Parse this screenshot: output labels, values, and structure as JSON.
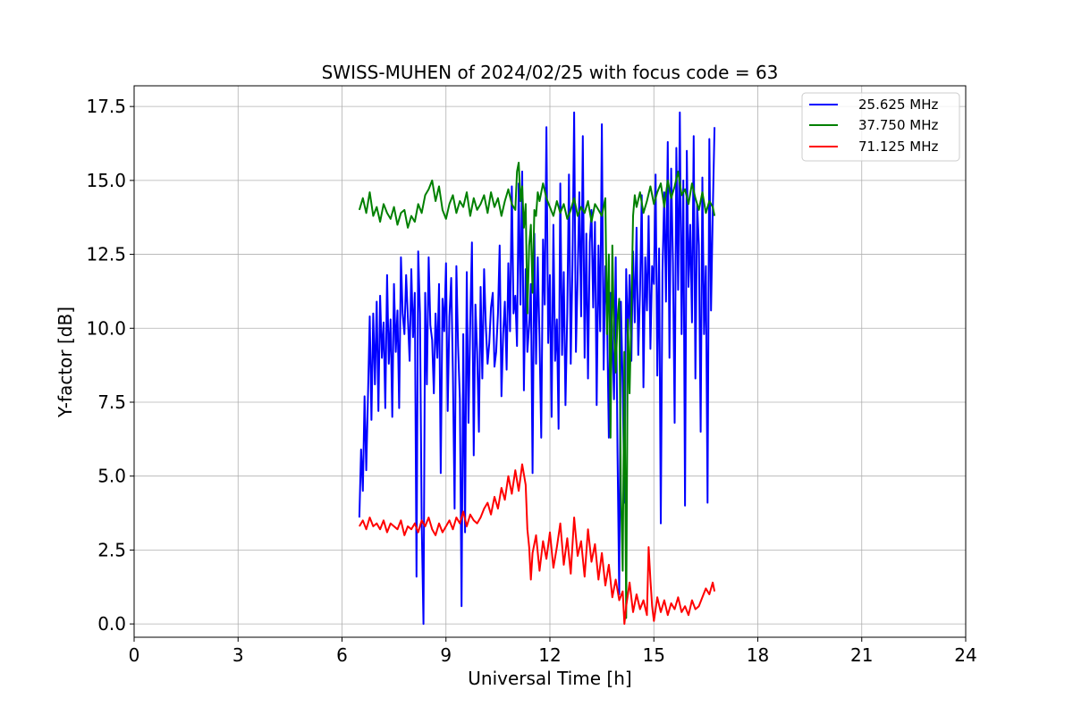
{
  "chart_data": {
    "type": "line",
    "title": "SWISS-MUHEN of 2024/02/25 with focus code = 63",
    "xlabel": "Universal Time [h]",
    "ylabel": "Y-factor [dB]",
    "xlim": [
      0,
      24
    ],
    "ylim": [
      -0.45,
      18.2
    ],
    "x_ticks": [
      0,
      3,
      6,
      9,
      12,
      15,
      18,
      21,
      24
    ],
    "x_tick_labels": [
      "0",
      "3",
      "6",
      "9",
      "12",
      "15",
      "18",
      "21",
      "24"
    ],
    "y_ticks": [
      0.0,
      2.5,
      5.0,
      7.5,
      10.0,
      12.5,
      15.0,
      17.5
    ],
    "y_tick_labels": [
      "0.0",
      "2.5",
      "5.0",
      "7.5",
      "10.0",
      "12.5",
      "15.0",
      "17.5"
    ],
    "grid": true,
    "legend_position": "top-right",
    "series": [
      {
        "name": "25.625 MHz",
        "color": "#0000ff",
        "x": [
          6.5,
          6.55,
          6.6,
          6.65,
          6.7,
          6.75,
          6.8,
          6.85,
          6.9,
          6.95,
          7.0,
          7.05,
          7.1,
          7.15,
          7.2,
          7.25,
          7.3,
          7.35,
          7.4,
          7.45,
          7.5,
          7.55,
          7.6,
          7.65,
          7.7,
          7.75,
          7.8,
          7.85,
          7.9,
          7.95,
          8.0,
          8.05,
          8.1,
          8.15,
          8.2,
          8.25,
          8.3,
          8.35,
          8.4,
          8.45,
          8.5,
          8.55,
          8.6,
          8.65,
          8.7,
          8.75,
          8.8,
          8.85,
          8.9,
          8.95,
          9.0,
          9.05,
          9.1,
          9.15,
          9.2,
          9.25,
          9.3,
          9.35,
          9.4,
          9.45,
          9.5,
          9.55,
          9.6,
          9.65,
          9.7,
          9.75,
          9.8,
          9.85,
          9.9,
          9.95,
          10.0,
          10.05,
          10.1,
          10.15,
          10.2,
          10.25,
          10.3,
          10.35,
          10.4,
          10.45,
          10.5,
          10.55,
          10.6,
          10.65,
          10.7,
          10.75,
          10.8,
          10.85,
          10.9,
          10.95,
          11.0,
          11.05,
          11.1,
          11.15,
          11.2,
          11.25,
          11.3,
          11.35,
          11.4,
          11.45,
          11.5,
          11.55,
          11.6,
          11.65,
          11.7,
          11.75,
          11.8,
          11.85,
          11.9,
          11.95,
          12.0,
          12.05,
          12.1,
          12.15,
          12.2,
          12.25,
          12.3,
          12.35,
          12.4,
          12.45,
          12.5,
          12.55,
          12.6,
          12.65,
          12.7,
          12.75,
          12.8,
          12.85,
          12.9,
          12.95,
          13.0,
          13.05,
          13.1,
          13.15,
          13.2,
          13.25,
          13.3,
          13.35,
          13.4,
          13.45,
          13.5,
          13.55,
          13.6,
          13.65,
          13.7,
          13.75,
          13.8,
          13.85,
          13.9,
          13.95,
          14.0,
          14.05,
          14.1,
          14.15,
          14.2,
          14.25,
          14.3,
          14.35,
          14.4,
          14.45,
          14.5,
          14.55,
          14.6,
          14.65,
          14.7,
          14.75,
          14.8,
          14.85,
          14.9,
          14.95,
          15.0,
          15.05,
          15.1,
          15.15,
          15.2,
          15.25,
          15.3,
          15.35,
          15.4,
          15.45,
          15.5,
          15.55,
          15.6,
          15.65,
          15.7,
          15.75,
          15.8,
          15.85,
          15.9,
          15.95,
          16.0,
          16.05,
          16.1,
          16.15,
          16.2,
          16.25,
          16.3,
          16.35,
          16.4,
          16.45,
          16.5,
          16.55,
          16.6,
          16.65,
          16.7,
          16.75
        ],
        "y": [
          3.6,
          5.9,
          4.5,
          7.7,
          5.2,
          7.8,
          10.4,
          6.9,
          10.5,
          8.1,
          10.9,
          7.2,
          11.1,
          9.0,
          10.2,
          7.3,
          11.8,
          8.8,
          10.3,
          7.0,
          11.5,
          9.2,
          10.6,
          7.3,
          12.4,
          10.5,
          9.8,
          11.8,
          10.4,
          8.9,
          12.0,
          9.7,
          11.2,
          1.6,
          12.6,
          10.5,
          3.4,
          0.0,
          11.2,
          8.1,
          12.4,
          10.1,
          9.6,
          7.8,
          10.5,
          9.0,
          11.5,
          5.1,
          11.0,
          9.9,
          12.2,
          7.2,
          10.4,
          11.7,
          8.5,
          3.9,
          12.1,
          9.4,
          7.6,
          0.6,
          9.8,
          3.1,
          11.9,
          6.8,
          10.2,
          12.9,
          5.7,
          10.8,
          9.2,
          6.5,
          11.4,
          8.3,
          12.0,
          10.1,
          8.8,
          9.5,
          10.7,
          11.2,
          8.7,
          9.2,
          10.5,
          12.8,
          7.7,
          9.8,
          10.9,
          8.6,
          12.2,
          9.9,
          14.8,
          10.5,
          11.1,
          9.4,
          14.9,
          10.8,
          15.3,
          7.9,
          12.0,
          9.2,
          10.1,
          11.5,
          5.1,
          13.2,
          8.8,
          12.4,
          9.6,
          6.3,
          13.0,
          10.8,
          16.8,
          9.5,
          11.8,
          7.0,
          13.5,
          8.9,
          10.3,
          6.6,
          14.9,
          9.1,
          11.9,
          7.4,
          10.5,
          15.2,
          8.8,
          12.1,
          17.3,
          9.2,
          11.7,
          14.6,
          10.4,
          16.5,
          9.0,
          13.2,
          8.3,
          12.9,
          14.0,
          10.7,
          13.6,
          7.4,
          12.8,
          9.9,
          16.9,
          8.6,
          12.1,
          10.4,
          6.3,
          11.2,
          9.7,
          7.6,
          12.4,
          5.8,
          1.0,
          10.9,
          8.1,
          4.1,
          12.0,
          9.5,
          11.8,
          8.9,
          12.6,
          10.2,
          13.4,
          9.1,
          11.3,
          14.5,
          8.0,
          12.4,
          10.6,
          13.8,
          9.3,
          12.1,
          11.5,
          15.2,
          8.4,
          12.7,
          3.4,
          11.9,
          14.6,
          10.9,
          16.3,
          9.0,
          15.4,
          12.2,
          6.8,
          16.1,
          11.3,
          17.3,
          9.8,
          15.0,
          4.0,
          16.0,
          11.4,
          13.5,
          10.2,
          16.5,
          8.3,
          14.2,
          12.8,
          6.5,
          15.1,
          9.8,
          12.1,
          4.1,
          16.4,
          10.6,
          13.9,
          16.8
        ]
      },
      {
        "name": "37.750 MHz",
        "color": "#008000",
        "x": [
          6.5,
          6.6,
          6.7,
          6.8,
          6.9,
          7.0,
          7.1,
          7.2,
          7.3,
          7.4,
          7.5,
          7.6,
          7.7,
          7.8,
          7.9,
          8.0,
          8.1,
          8.2,
          8.3,
          8.4,
          8.5,
          8.6,
          8.7,
          8.8,
          8.9,
          9.0,
          9.1,
          9.2,
          9.3,
          9.4,
          9.5,
          9.6,
          9.7,
          9.8,
          9.9,
          10.0,
          10.1,
          10.2,
          10.3,
          10.4,
          10.5,
          10.6,
          10.7,
          10.8,
          10.9,
          11.0,
          11.05,
          11.1,
          11.15,
          11.2,
          11.25,
          11.3,
          11.35,
          11.4,
          11.45,
          11.5,
          11.55,
          11.6,
          11.65,
          11.7,
          11.8,
          11.9,
          12.0,
          12.1,
          12.2,
          12.3,
          12.4,
          12.5,
          12.6,
          12.7,
          12.8,
          12.9,
          13.0,
          13.1,
          13.2,
          13.3,
          13.4,
          13.5,
          13.6,
          13.65,
          13.7,
          13.75,
          13.8,
          13.85,
          13.9,
          13.95,
          14.0,
          14.05,
          14.1,
          14.15,
          14.2,
          14.25,
          14.3,
          14.35,
          14.4,
          14.45,
          14.5,
          14.6,
          14.7,
          14.8,
          14.9,
          15.0,
          15.1,
          15.2,
          15.3,
          15.4,
          15.5,
          15.6,
          15.7,
          15.8,
          15.9,
          16.0,
          16.1,
          16.2,
          16.3,
          16.4,
          16.5,
          16.6,
          16.7,
          16.75
        ],
        "y": [
          14.0,
          14.4,
          13.9,
          14.6,
          13.8,
          14.1,
          13.6,
          14.2,
          13.9,
          13.7,
          14.1,
          13.5,
          13.9,
          14.0,
          13.4,
          13.8,
          13.6,
          14.2,
          13.9,
          14.5,
          14.7,
          15.0,
          14.3,
          14.8,
          14.0,
          13.7,
          14.2,
          14.5,
          13.9,
          14.3,
          14.1,
          14.6,
          13.8,
          14.4,
          14.0,
          14.2,
          14.5,
          13.9,
          14.6,
          14.1,
          14.4,
          13.8,
          14.3,
          14.7,
          14.2,
          14.0,
          15.3,
          15.6,
          14.3,
          14.8,
          13.4,
          14.2,
          10.5,
          12.8,
          13.5,
          11.2,
          14.0,
          13.8,
          14.6,
          14.3,
          14.9,
          14.4,
          14.1,
          13.8,
          14.3,
          13.9,
          14.2,
          13.7,
          14.0,
          14.4,
          13.8,
          14.1,
          13.9,
          14.3,
          13.6,
          14.2,
          14.0,
          13.8,
          14.4,
          9.8,
          12.5,
          6.3,
          12.8,
          9.9,
          8.5,
          10.3,
          11.0,
          4.5,
          1.8,
          9.2,
          0.2,
          10.3,
          7.8,
          10.5,
          13.8,
          14.5,
          14.1,
          14.6,
          13.9,
          14.3,
          14.8,
          14.2,
          14.6,
          14.9,
          14.1,
          15.0,
          14.4,
          14.8,
          15.3,
          14.5,
          14.7,
          14.2,
          14.9,
          14.4,
          14.0,
          14.6,
          13.9,
          14.3,
          14.1,
          13.8
        ]
      },
      {
        "name": "71.125 MHz",
        "color": "#ff0000",
        "x": [
          6.5,
          6.6,
          6.7,
          6.8,
          6.9,
          7.0,
          7.1,
          7.2,
          7.3,
          7.4,
          7.5,
          7.6,
          7.7,
          7.8,
          7.9,
          8.0,
          8.1,
          8.2,
          8.3,
          8.4,
          8.5,
          8.6,
          8.7,
          8.8,
          8.9,
          9.0,
          9.1,
          9.2,
          9.3,
          9.4,
          9.5,
          9.6,
          9.7,
          9.8,
          9.9,
          10.0,
          10.1,
          10.2,
          10.3,
          10.4,
          10.5,
          10.6,
          10.7,
          10.8,
          10.9,
          11.0,
          11.1,
          11.2,
          11.3,
          11.35,
          11.4,
          11.45,
          11.5,
          11.6,
          11.7,
          11.8,
          11.9,
          12.0,
          12.1,
          12.2,
          12.3,
          12.4,
          12.5,
          12.6,
          12.7,
          12.8,
          12.9,
          13.0,
          13.1,
          13.2,
          13.3,
          13.4,
          13.5,
          13.6,
          13.7,
          13.8,
          13.9,
          14.0,
          14.1,
          14.15,
          14.2,
          14.3,
          14.4,
          14.5,
          14.6,
          14.7,
          14.8,
          14.85,
          14.9,
          14.95,
          15.0,
          15.1,
          15.2,
          15.3,
          15.4,
          15.5,
          15.6,
          15.7,
          15.8,
          15.9,
          16.0,
          16.1,
          16.2,
          16.3,
          16.4,
          16.5,
          16.6,
          16.7,
          16.75
        ],
        "y": [
          3.3,
          3.5,
          3.2,
          3.6,
          3.3,
          3.4,
          3.2,
          3.5,
          3.1,
          3.4,
          3.3,
          3.2,
          3.5,
          3.0,
          3.3,
          3.2,
          3.4,
          3.1,
          3.5,
          3.3,
          3.6,
          3.2,
          3.0,
          3.4,
          3.1,
          3.3,
          3.5,
          3.2,
          3.6,
          3.4,
          3.8,
          3.3,
          3.7,
          3.5,
          3.4,
          3.6,
          3.9,
          4.1,
          3.7,
          4.3,
          3.9,
          4.6,
          4.2,
          5.0,
          4.4,
          5.2,
          4.5,
          5.4,
          4.7,
          3.2,
          2.6,
          1.5,
          2.4,
          3.0,
          1.8,
          2.8,
          2.2,
          3.1,
          1.9,
          2.6,
          3.4,
          2.0,
          2.9,
          1.7,
          3.6,
          2.3,
          2.8,
          1.6,
          3.2,
          2.1,
          2.7,
          1.5,
          2.4,
          1.3,
          2.0,
          0.9,
          1.5,
          0.8,
          1.1,
          0.0,
          0.6,
          1.4,
          0.4,
          1.0,
          0.5,
          0.8,
          0.3,
          2.6,
          1.5,
          0.6,
          0.1,
          0.9,
          0.4,
          0.8,
          0.3,
          0.7,
          0.5,
          0.9,
          0.4,
          0.6,
          0.3,
          0.8,
          0.5,
          0.6,
          0.9,
          1.2,
          1.0,
          1.4,
          1.1
        ]
      }
    ]
  }
}
